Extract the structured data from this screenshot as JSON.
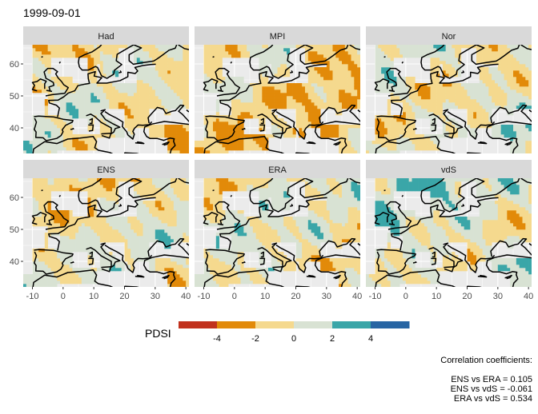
{
  "chart_data": {
    "type": "heatmap",
    "title": "1999-09-01",
    "panels": [
      {
        "name": "Had"
      },
      {
        "name": "MPI"
      },
      {
        "name": "Nor"
      },
      {
        "name": "ENS"
      },
      {
        "name": "ERA"
      },
      {
        "name": "vdS"
      }
    ],
    "x_ticks": [
      -10,
      0,
      10,
      20,
      30,
      40
    ],
    "y_ticks": [
      40,
      50,
      60
    ],
    "xlim": [
      -13,
      41
    ],
    "ylim": [
      32,
      66
    ],
    "legend": {
      "title": "PDSI",
      "placement": "bottom",
      "range": [
        -6,
        6
      ],
      "ticks": [
        -4,
        -2,
        0,
        2,
        4
      ],
      "colors": [
        "#c1311d",
        "#e28a09",
        "#f5d98e",
        "#d8e2d3",
        "#3aa6a8",
        "#2765a3"
      ]
    },
    "correlation": {
      "heading": "Correlation coefficients:",
      "lines": [
        "ENS vs ERA = 0.105",
        "ENS vs vdS = -0.061",
        "ERA vs vdS = 0.534"
      ]
    },
    "colors": {
      "panel_bg": "#ebebeb",
      "grid": "#ffffff",
      "strip_bg": "#d9d9d9",
      "coast": "#000000"
    }
  }
}
